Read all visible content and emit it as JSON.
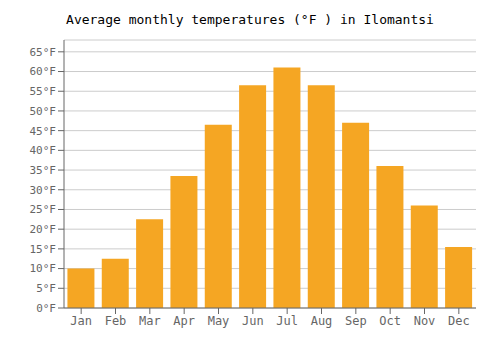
{
  "chart_data": {
    "type": "bar",
    "title": "Average monthly temperatures (°F ) in Ilomantsi",
    "categories": [
      "Jan",
      "Feb",
      "Mar",
      "Apr",
      "May",
      "Jun",
      "Jul",
      "Aug",
      "Sep",
      "Oct",
      "Nov",
      "Dec"
    ],
    "values": [
      10,
      12.5,
      22.5,
      33.5,
      46.5,
      56.5,
      61,
      56.5,
      47,
      36,
      26,
      15.5
    ],
    "color": "#F5A623",
    "ylim": [
      0,
      68
    ],
    "yticks": [
      {
        "value": 0,
        "label": "0°F"
      },
      {
        "value": 5,
        "label": "5°F"
      },
      {
        "value": 10,
        "label": "10°F"
      },
      {
        "value": 15,
        "label": "15°F"
      },
      {
        "value": 20,
        "label": "20°F"
      },
      {
        "value": 25,
        "label": "25°F"
      },
      {
        "value": 30,
        "label": "30°F"
      },
      {
        "value": 35,
        "label": "35°F"
      },
      {
        "value": 40,
        "label": "40°F"
      },
      {
        "value": 45,
        "label": "45°F"
      },
      {
        "value": 50,
        "label": "50°F"
      },
      {
        "value": 55,
        "label": "55°F"
      },
      {
        "value": 60,
        "label": "60°F"
      },
      {
        "value": 65,
        "label": "65°F"
      }
    ],
    "grid": true
  }
}
